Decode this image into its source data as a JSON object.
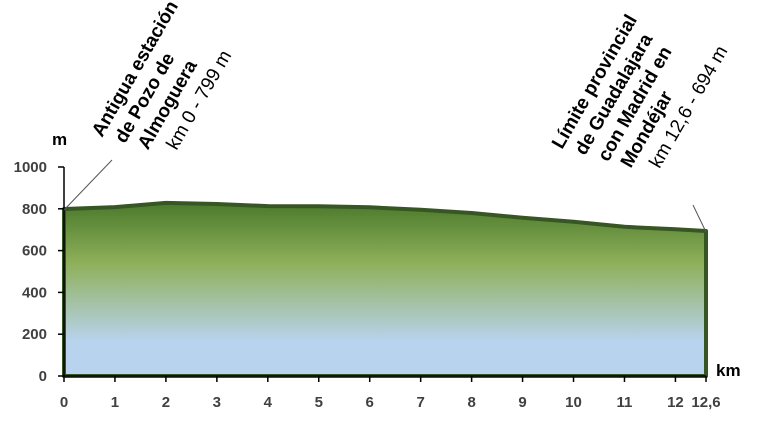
{
  "chart_data": {
    "type": "area",
    "xlabel": "km",
    "ylabel": "m",
    "xlim": [
      0,
      12.6
    ],
    "ylim": [
      0,
      1000
    ],
    "x_ticks": [
      0,
      1,
      2,
      3,
      4,
      5,
      6,
      7,
      8,
      9,
      10,
      11,
      12,
      12.6
    ],
    "x_tick_labels": [
      "0",
      "1",
      "2",
      "3",
      "4",
      "5",
      "6",
      "7",
      "8",
      "9",
      "10",
      "11",
      "12",
      "12,6"
    ],
    "y_ticks": [
      0,
      200,
      400,
      600,
      800,
      1000
    ],
    "y_tick_labels": [
      "0",
      "200",
      "400",
      "600",
      "800",
      "1000"
    ],
    "grid": false,
    "series": [
      {
        "x": [
          0,
          1,
          2,
          3,
          4,
          5,
          6,
          7,
          8,
          9,
          10,
          11,
          12,
          12.6
        ],
        "y": [
          799,
          808,
          828,
          823,
          813,
          812,
          807,
          795,
          780,
          757,
          738,
          714,
          702,
          694
        ]
      }
    ],
    "colors": {
      "fill_top": "#4a7a2b",
      "fill_mid": "#8fb05a",
      "fill_bottom": "#b8d3ee",
      "outline": "#375623",
      "axis": "#000000",
      "tick_text": "#404040"
    },
    "annotations": [
      {
        "x": 0,
        "y": 799,
        "bold_lines": [
          "Antigua estación",
          "de Pozo de",
          "Almoguera"
        ],
        "normal_line": "km 0 - 799 m"
      },
      {
        "x": 12.6,
        "y": 694,
        "bold_lines": [
          "Límite provincial",
          "de Guadalajara",
          "con Madrid en",
          "Mondéjar"
        ],
        "normal_line": "km 12,6 - 694 m"
      }
    ]
  }
}
